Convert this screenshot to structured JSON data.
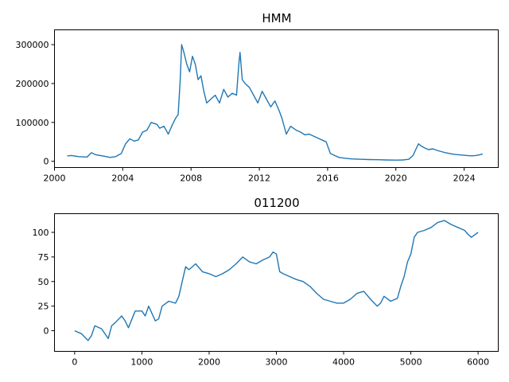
{
  "colors": {
    "series": "#1f77b4"
  },
  "chart_data": [
    {
      "type": "line",
      "title": "HMM",
      "xlabel": "",
      "ylabel": "",
      "x_axis": "date",
      "xlim": [
        "2000-01-01",
        "2025-12-31"
      ],
      "ylim": [
        -16000,
        338000
      ],
      "xticks": [
        {
          "value": "2000-01-01",
          "label": "2000"
        },
        {
          "value": "2004-01-01",
          "label": "2004"
        },
        {
          "value": "2008-01-01",
          "label": "2008"
        },
        {
          "value": "2012-01-01",
          "label": "2012"
        },
        {
          "value": "2016-01-01",
          "label": "2016"
        },
        {
          "value": "2020-01-01",
          "label": "2020"
        },
        {
          "value": "2024-01-01",
          "label": "2024"
        }
      ],
      "yticks": [
        {
          "value": 0,
          "label": "0"
        },
        {
          "value": 100000,
          "label": "100000"
        },
        {
          "value": 200000,
          "label": "200000"
        },
        {
          "value": 300000,
          "label": "300000"
        }
      ],
      "grid": false,
      "series": [
        {
          "x": [
            "2000-10-01",
            "2001-01-01",
            "2001-06-01",
            "2001-12-01",
            "2002-03-01",
            "2002-06-01",
            "2002-12-01",
            "2003-04-01",
            "2003-08-01",
            "2003-12-01",
            "2004-03-01",
            "2004-06-01",
            "2004-09-01",
            "2004-12-01",
            "2005-03-01",
            "2005-06-01",
            "2005-09-01",
            "2006-01-01",
            "2006-03-01",
            "2006-06-01",
            "2006-09-01",
            "2006-12-01",
            "2007-02-01",
            "2007-04-01",
            "2007-05-15",
            "2007-06-15",
            "2007-08-01",
            "2007-10-01",
            "2007-12-01",
            "2008-02-01",
            "2008-04-01",
            "2008-06-01",
            "2008-08-01",
            "2008-10-01",
            "2008-12-01",
            "2009-03-01",
            "2009-06-01",
            "2009-09-01",
            "2009-12-01",
            "2010-03-01",
            "2010-06-01",
            "2010-09-01",
            "2010-10-20",
            "2010-11-15",
            "2011-01-01",
            "2011-03-01",
            "2011-06-01",
            "2011-09-01",
            "2011-12-01",
            "2012-03-01",
            "2012-06-01",
            "2012-09-01",
            "2012-12-01",
            "2013-03-01",
            "2013-05-01",
            "2013-08-01",
            "2013-11-01",
            "2014-03-01",
            "2014-06-01",
            "2014-09-01",
            "2014-12-01",
            "2015-03-01",
            "2015-06-01",
            "2015-09-01",
            "2015-12-01",
            "2016-03-01",
            "2016-06-01",
            "2016-09-01",
            "2017-01-01",
            "2017-06-01",
            "2018-01-01",
            "2018-06-01",
            "2019-01-01",
            "2019-06-01",
            "2020-01-01",
            "2020-06-01",
            "2020-10-01",
            "2021-01-01",
            "2021-03-01",
            "2021-05-01",
            "2021-06-15",
            "2021-09-01",
            "2021-12-01",
            "2022-03-01",
            "2022-06-01",
            "2022-09-01",
            "2022-12-01",
            "2023-03-01",
            "2023-06-01",
            "2023-09-01",
            "2023-12-01",
            "2024-03-01",
            "2024-06-01",
            "2024-09-01",
            "2024-12-01",
            "2025-02-01"
          ],
          "y": [
            14000,
            15000,
            12000,
            11000,
            22000,
            17000,
            13000,
            10000,
            12000,
            20000,
            45000,
            58000,
            52000,
            55000,
            75000,
            80000,
            100000,
            95000,
            85000,
            90000,
            70000,
            95000,
            110000,
            120000,
            210000,
            300000,
            280000,
            250000,
            230000,
            270000,
            250000,
            210000,
            220000,
            180000,
            150000,
            160000,
            170000,
            150000,
            185000,
            165000,
            175000,
            170000,
            250000,
            280000,
            210000,
            200000,
            190000,
            170000,
            150000,
            180000,
            160000,
            140000,
            155000,
            130000,
            110000,
            70000,
            90000,
            80000,
            75000,
            68000,
            70000,
            65000,
            60000,
            55000,
            50000,
            20000,
            15000,
            10000,
            8000,
            6000,
            5000,
            4500,
            4000,
            3500,
            3000,
            3500,
            5000,
            15000,
            30000,
            45000,
            40000,
            35000,
            30000,
            32000,
            28000,
            25000,
            22000,
            20000,
            18000,
            17000,
            16000,
            15000,
            14000,
            15000,
            17000,
            19000
          ]
        }
      ]
    },
    {
      "type": "line",
      "title": "011200",
      "xlabel": "",
      "ylabel": "",
      "xlim": [
        -300,
        6300
      ],
      "ylim": [
        -21,
        119
      ],
      "xticks": [
        {
          "value": 0,
          "label": "0"
        },
        {
          "value": 1000,
          "label": "1000"
        },
        {
          "value": 2000,
          "label": "2000"
        },
        {
          "value": 3000,
          "label": "3000"
        },
        {
          "value": 4000,
          "label": "4000"
        },
        {
          "value": 5000,
          "label": "5000"
        },
        {
          "value": 6000,
          "label": "6000"
        }
      ],
      "yticks": [
        {
          "value": 0,
          "label": "0"
        },
        {
          "value": 25,
          "label": "25"
        },
        {
          "value": 50,
          "label": "50"
        },
        {
          "value": 75,
          "label": "75"
        },
        {
          "value": 100,
          "label": "100"
        }
      ],
      "grid": false,
      "series": [
        {
          "x": [
            0,
            100,
            200,
            250,
            300,
            400,
            500,
            550,
            600,
            700,
            750,
            800,
            900,
            1000,
            1050,
            1100,
            1200,
            1250,
            1300,
            1400,
            1500,
            1550,
            1600,
            1650,
            1700,
            1800,
            1900,
            2000,
            2100,
            2200,
            2300,
            2400,
            2500,
            2600,
            2700,
            2800,
            2900,
            2950,
            3000,
            3050,
            3100,
            3200,
            3300,
            3400,
            3500,
            3600,
            3700,
            3800,
            3900,
            4000,
            4100,
            4200,
            4300,
            4400,
            4500,
            4550,
            4600,
            4700,
            4800,
            4850,
            4900,
            4950,
            5000,
            5050,
            5100,
            5200,
            5300,
            5400,
            5500,
            5600,
            5700,
            5800,
            5850,
            5900,
            6000
          ],
          "y": [
            0,
            -3,
            -10,
            -5,
            5,
            2,
            -8,
            5,
            8,
            15,
            10,
            3,
            20,
            20,
            15,
            25,
            10,
            12,
            25,
            30,
            28,
            35,
            50,
            65,
            62,
            68,
            60,
            58,
            55,
            58,
            62,
            68,
            75,
            70,
            68,
            72,
            75,
            80,
            78,
            60,
            58,
            55,
            52,
            50,
            45,
            38,
            32,
            30,
            28,
            28,
            32,
            38,
            40,
            32,
            25,
            28,
            35,
            30,
            33,
            45,
            55,
            70,
            78,
            95,
            100,
            102,
            105,
            110,
            112,
            108,
            105,
            102,
            98,
            95,
            100
          ]
        }
      ]
    }
  ]
}
